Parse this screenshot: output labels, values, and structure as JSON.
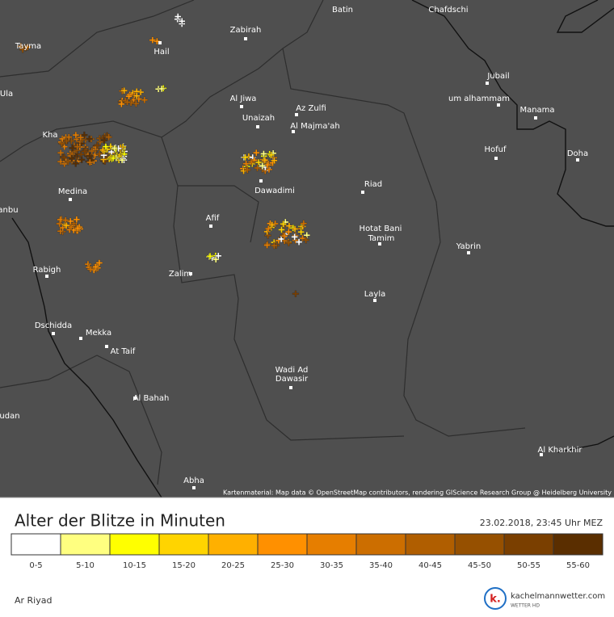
{
  "map": {
    "labels": [
      "Chafdschi",
      "Zabirah",
      "Hail",
      "Tayma",
      "Ula",
      "Kha",
      "Jubail",
      "um alhammam",
      "Manama",
      "Al Jiwa",
      "Az Zulfi",
      "Unaizah",
      "Al Majma'ah",
      "Hofuf",
      "Doha",
      "Riad",
      "Dawadimi",
      "Medina",
      "anbu",
      "Afif",
      "Hotat Bani",
      "Tamim",
      "Yabrin",
      "Rabigh",
      "Zalim",
      "Layla",
      "Dschidda",
      "Mekka",
      "At Taif",
      "Wadi Ad",
      "Dawasir",
      "Al Bahah",
      "udan",
      "Al Kharkhir",
      "Abha",
      "Batin"
    ],
    "attribution": "Kartenmaterial: Map data © OpenStreetMap contributors, rendering GIScience Research Group @ Heidelberg University"
  },
  "legend": {
    "title": "Alter der Blitze in Minuten",
    "timestamp": "23.02.2018, 23:45 Uhr MEZ",
    "items": [
      {
        "label": "0-5",
        "color": "#ffffff"
      },
      {
        "label": "5-10",
        "color": "#ffff80"
      },
      {
        "label": "10-15",
        "color": "#ffff00"
      },
      {
        "label": "15-20",
        "color": "#ffd400"
      },
      {
        "label": "20-25",
        "color": "#ffb000"
      },
      {
        "label": "25-30",
        "color": "#ff9000"
      },
      {
        "label": "30-35",
        "color": "#e67e00"
      },
      {
        "label": "35-40",
        "color": "#cc6e00"
      },
      {
        "label": "40-45",
        "color": "#b05e00"
      },
      {
        "label": "45-50",
        "color": "#965000"
      },
      {
        "label": "50-55",
        "color": "#7a3f00"
      },
      {
        "label": "55-60",
        "color": "#5a2e00"
      }
    ]
  },
  "footer": {
    "location": "Ar Riyad",
    "logo_mark": "k.",
    "brand": "kachelmannwetter.com",
    "tagline": "WETTER HD"
  }
}
